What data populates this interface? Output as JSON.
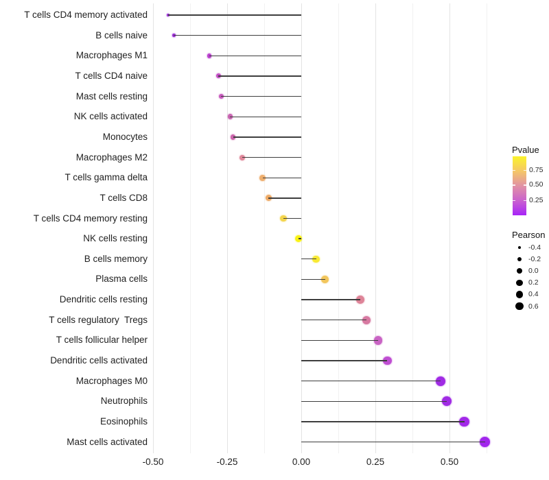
{
  "chart_data": {
    "type": "scatter",
    "subtype": "horizontal-lollipop",
    "title": "",
    "xlabel": "",
    "ylabel": "",
    "xlim": [
      -0.51,
      0.675
    ],
    "grid": "vertical only, major + minor, no axis lines, white background",
    "x_ticks": [
      {
        "label": "-0.50",
        "value": -0.5
      },
      {
        "label": "-0.25",
        "value": -0.25
      },
      {
        "label": "0.00",
        "value": 0.0
      },
      {
        "label": "0.25",
        "value": 0.25
      },
      {
        "label": "0.50",
        "value": 0.5
      }
    ],
    "x_minor_grid_values": [
      -0.375,
      -0.125,
      0.125,
      0.375,
      0.625
    ],
    "points": [
      {
        "label": "T cells CD4 memory activated",
        "pearson": -0.45,
        "color": "#9a2cd9"
      },
      {
        "label": "B cells naive",
        "pearson": -0.43,
        "color": "#9c2ed7"
      },
      {
        "label": "Macrophages M1",
        "pearson": -0.31,
        "color": "#bb42d0"
      },
      {
        "label": "T cells CD4 naive",
        "pearson": -0.28,
        "color": "#c350c5"
      },
      {
        "label": "Mast cells resting",
        "pearson": -0.27,
        "color": "#c75abd"
      },
      {
        "label": "NK cells activated",
        "pearson": -0.24,
        "color": "#c966b2"
      },
      {
        "label": "Monocytes",
        "pearson": -0.23,
        "color": "#cb65ac"
      },
      {
        "label": "Macrophages M2",
        "pearson": -0.2,
        "color": "#e0879a"
      },
      {
        "label": "T cells gamma delta",
        "pearson": -0.13,
        "color": "#eeae6e"
      },
      {
        "label": "T cells CD8",
        "pearson": -0.11,
        "color": "#eeaa66"
      },
      {
        "label": "T cells CD4 memory resting",
        "pearson": -0.06,
        "color": "#f4d54c"
      },
      {
        "label": "NK cells resting",
        "pearson": -0.01,
        "color": "#f9f215"
      },
      {
        "label": "B cells memory",
        "pearson": 0.05,
        "color": "#f8e932"
      },
      {
        "label": "Plasma cells",
        "pearson": 0.08,
        "color": "#f2c65c"
      },
      {
        "label": "Dendritic cells resting",
        "pearson": 0.2,
        "color": "#de8498"
      },
      {
        "label": "T cells regulatory  Tregs",
        "pearson": 0.22,
        "color": "#d779a1"
      },
      {
        "label": "T cells follicular helper",
        "pearson": 0.26,
        "color": "#c964c4"
      },
      {
        "label": "Dendritic cells activated",
        "pearson": 0.29,
        "color": "#bf4ed2"
      },
      {
        "label": "Macrophages M0",
        "pearson": 0.47,
        "color": "#a02be4"
      },
      {
        "label": "Neutrophils",
        "pearson": 0.49,
        "color": "#a02be4"
      },
      {
        "label": "Eosinophils",
        "pearson": 0.55,
        "color": "#a228e8"
      },
      {
        "label": "Mast cells activated",
        "pearson": 0.62,
        "color": "#a126ec"
      }
    ],
    "legend": {
      "pvalue": {
        "title": "Pvalue",
        "tick_labels": [
          "0.75",
          "0.50",
          "0.25"
        ],
        "gradient_top_to_bottom": [
          "#faf32b",
          "#f5c767",
          "#e192a4",
          "#ca61ce",
          "#a724f8"
        ]
      },
      "pearson": {
        "title": "Pearson",
        "entries": [
          {
            "label": "-0.4",
            "value": -0.4
          },
          {
            "label": "-0.2",
            "value": -0.2
          },
          {
            "label": "0.0",
            "value": 0.0
          },
          {
            "label": "0.2",
            "value": 0.2
          },
          {
            "label": "0.4",
            "value": 0.4
          },
          {
            "label": "0.6",
            "value": 0.6
          }
        ]
      }
    }
  },
  "colors": {
    "stem": "#3d3d3d",
    "major_grid": "#e3e3e3",
    "minor_grid": "#f1f1f1",
    "axis_text": "#1f1f1f"
  }
}
